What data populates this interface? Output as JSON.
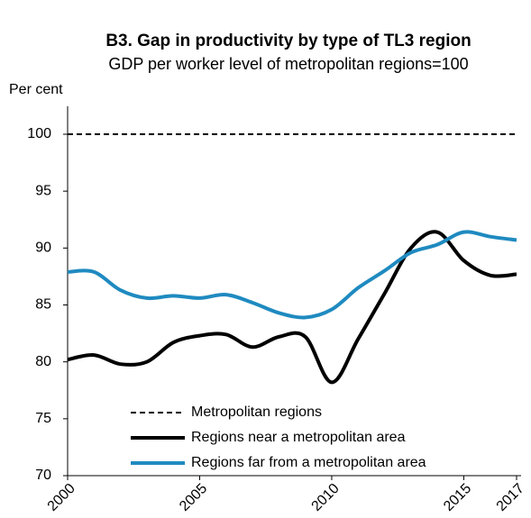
{
  "chart_data": {
    "type": "line",
    "title": "B3. Gap in productivity by type of TL3 region",
    "subtitle": "GDP per worker level of metropolitan regions=100",
    "y_label": "Per cent",
    "x": [
      2000,
      2001,
      2002,
      2003,
      2004,
      2005,
      2006,
      2007,
      2008,
      2009,
      2010,
      2011,
      2012,
      2013,
      2014,
      2015,
      2016,
      2017
    ],
    "xlim": [
      2000,
      2017
    ],
    "xticks": [
      2000,
      2005,
      2010,
      2015,
      2017
    ],
    "ylim": [
      70,
      100
    ],
    "yticks": [
      70,
      75,
      80,
      85,
      90,
      95,
      100
    ],
    "legend": "lower left",
    "series": [
      {
        "name": "Metropolitan regions",
        "color": "#000000",
        "dashed": true,
        "values": [
          100,
          100,
          100,
          100,
          100,
          100,
          100,
          100,
          100,
          100,
          100,
          100,
          100,
          100,
          100,
          100,
          100,
          100
        ]
      },
      {
        "name": "Regions near a metropolitan area",
        "color": "#000000",
        "values": [
          80.2,
          80.6,
          79.8,
          80.0,
          81.7,
          82.3,
          82.4,
          81.3,
          82.2,
          82.2,
          78.2,
          82.0,
          86.0,
          90.0,
          91.4,
          88.9,
          87.6,
          87.7
        ]
      },
      {
        "name": "Regions far from a metropolitan area",
        "color": "#1f8ac0",
        "values": [
          87.9,
          87.9,
          86.3,
          85.6,
          85.8,
          85.6,
          85.9,
          85.2,
          84.3,
          83.9,
          84.6,
          86.5,
          88.0,
          89.6,
          90.3,
          91.4,
          91.0,
          90.7
        ]
      }
    ]
  }
}
